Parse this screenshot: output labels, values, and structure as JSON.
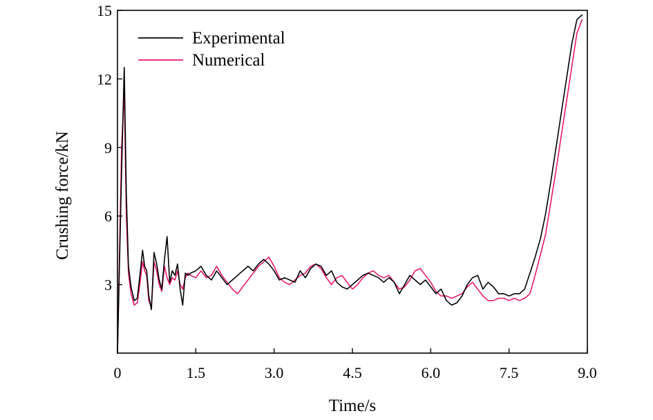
{
  "chart_data": {
    "type": "line",
    "title": "",
    "xlabel": "Time/s",
    "ylabel": "Crushing force/kN",
    "xlim": [
      0,
      9.0
    ],
    "ylim": [
      0,
      15
    ],
    "xticks": [
      0,
      1.5,
      3.0,
      4.5,
      6.0,
      7.5,
      9.0
    ],
    "xtick_labels": [
      "0",
      "1.5",
      "3.0",
      "4.5",
      "6.0",
      "7.5",
      "9.0"
    ],
    "yticks": [
      3,
      6,
      9,
      12,
      15
    ],
    "ytick_labels": [
      "3",
      "6",
      "9",
      "12",
      "15"
    ],
    "grid": false,
    "legend_position": "top-left",
    "series": [
      {
        "name": "Experimental",
        "color": "#000000",
        "x": [
          0.0,
          0.08,
          0.13,
          0.17,
          0.21,
          0.26,
          0.32,
          0.38,
          0.44,
          0.48,
          0.52,
          0.56,
          0.6,
          0.65,
          0.7,
          0.75,
          0.8,
          0.85,
          0.9,
          0.95,
          1.0,
          1.05,
          1.1,
          1.15,
          1.2,
          1.25,
          1.3,
          1.35,
          1.4,
          1.5,
          1.6,
          1.7,
          1.8,
          1.9,
          2.0,
          2.1,
          2.2,
          2.3,
          2.4,
          2.5,
          2.6,
          2.7,
          2.8,
          2.9,
          3.0,
          3.1,
          3.2,
          3.3,
          3.4,
          3.5,
          3.6,
          3.7,
          3.8,
          3.9,
          4.0,
          4.1,
          4.2,
          4.3,
          4.4,
          4.5,
          4.6,
          4.7,
          4.8,
          4.9,
          5.0,
          5.1,
          5.2,
          5.3,
          5.4,
          5.5,
          5.6,
          5.7,
          5.8,
          5.9,
          6.0,
          6.1,
          6.2,
          6.3,
          6.4,
          6.5,
          6.6,
          6.7,
          6.8,
          6.9,
          7.0,
          7.1,
          7.2,
          7.3,
          7.4,
          7.5,
          7.6,
          7.7,
          7.8,
          7.9,
          8.0,
          8.1,
          8.2,
          8.3,
          8.4,
          8.5,
          8.6,
          8.7,
          8.8,
          8.9
        ],
        "y": [
          0.0,
          8.0,
          12.5,
          7.0,
          3.8,
          2.9,
          2.3,
          2.4,
          3.6,
          4.5,
          3.8,
          3.6,
          2.5,
          1.9,
          4.4,
          3.9,
          3.2,
          2.8,
          4.1,
          5.1,
          3.1,
          3.6,
          3.4,
          3.9,
          2.8,
          2.1,
          3.5,
          3.4,
          3.5,
          3.6,
          3.8,
          3.4,
          3.2,
          3.6,
          3.3,
          3.0,
          3.2,
          3.4,
          3.6,
          3.8,
          3.6,
          3.9,
          4.1,
          3.9,
          3.6,
          3.2,
          3.3,
          3.2,
          3.1,
          3.6,
          3.3,
          3.7,
          3.9,
          3.8,
          3.4,
          3.6,
          3.1,
          2.9,
          2.8,
          3.0,
          3.2,
          3.4,
          3.5,
          3.4,
          3.3,
          3.1,
          3.3,
          3.1,
          2.6,
          3.0,
          3.4,
          3.2,
          3.0,
          3.2,
          2.9,
          2.6,
          2.8,
          2.3,
          2.1,
          2.2,
          2.5,
          3.0,
          3.3,
          3.4,
          2.8,
          3.1,
          2.9,
          2.6,
          2.6,
          2.5,
          2.6,
          2.6,
          2.8,
          3.5,
          4.2,
          5.0,
          6.1,
          7.5,
          9.0,
          10.5,
          12.0,
          13.5,
          14.6,
          14.8
        ]
      },
      {
        "name": "Numerical",
        "color": "#e8176b",
        "x": [
          0.0,
          0.08,
          0.13,
          0.17,
          0.21,
          0.26,
          0.32,
          0.38,
          0.44,
          0.48,
          0.52,
          0.56,
          0.6,
          0.65,
          0.7,
          0.75,
          0.8,
          0.85,
          0.9,
          0.95,
          1.0,
          1.05,
          1.1,
          1.15,
          1.2,
          1.25,
          1.3,
          1.35,
          1.4,
          1.5,
          1.6,
          1.7,
          1.8,
          1.9,
          2.0,
          2.1,
          2.2,
          2.3,
          2.4,
          2.5,
          2.6,
          2.7,
          2.8,
          2.9,
          3.0,
          3.1,
          3.2,
          3.3,
          3.4,
          3.5,
          3.6,
          3.7,
          3.8,
          3.9,
          4.0,
          4.1,
          4.2,
          4.3,
          4.4,
          4.5,
          4.6,
          4.7,
          4.8,
          4.9,
          5.0,
          5.1,
          5.2,
          5.3,
          5.4,
          5.5,
          5.6,
          5.7,
          5.8,
          5.9,
          6.0,
          6.1,
          6.2,
          6.3,
          6.4,
          6.5,
          6.6,
          6.7,
          6.8,
          6.9,
          7.0,
          7.1,
          7.2,
          7.3,
          7.4,
          7.5,
          7.6,
          7.7,
          7.8,
          7.9,
          8.0,
          8.1,
          8.2,
          8.3,
          8.4,
          8.5,
          8.6,
          8.7,
          8.8,
          8.9
        ],
        "y": [
          0.0,
          9.0,
          11.5,
          6.0,
          3.5,
          2.6,
          2.1,
          2.2,
          3.2,
          4.0,
          3.6,
          3.4,
          2.3,
          2.0,
          4.0,
          3.6,
          3.0,
          2.7,
          3.8,
          3.3,
          3.0,
          3.3,
          3.2,
          3.6,
          3.0,
          2.8,
          3.3,
          3.5,
          3.4,
          3.3,
          3.6,
          3.3,
          3.4,
          3.8,
          3.4,
          3.1,
          2.8,
          2.6,
          2.9,
          3.2,
          3.5,
          3.8,
          4.0,
          4.2,
          3.8,
          3.3,
          3.1,
          3.0,
          3.2,
          3.4,
          3.5,
          3.8,
          3.9,
          3.7,
          3.3,
          3.0,
          3.3,
          3.4,
          3.1,
          2.8,
          3.0,
          3.3,
          3.5,
          3.6,
          3.4,
          3.3,
          3.4,
          3.1,
          2.8,
          2.9,
          3.2,
          3.6,
          3.7,
          3.4,
          3.1,
          2.7,
          2.5,
          2.5,
          2.4,
          2.5,
          2.6,
          2.9,
          3.1,
          2.8,
          2.5,
          2.3,
          2.3,
          2.4,
          2.4,
          2.3,
          2.4,
          2.3,
          2.4,
          2.6,
          3.4,
          4.3,
          5.2,
          6.6,
          8.0,
          9.5,
          11.0,
          12.5,
          14.0,
          14.6
        ]
      }
    ]
  }
}
